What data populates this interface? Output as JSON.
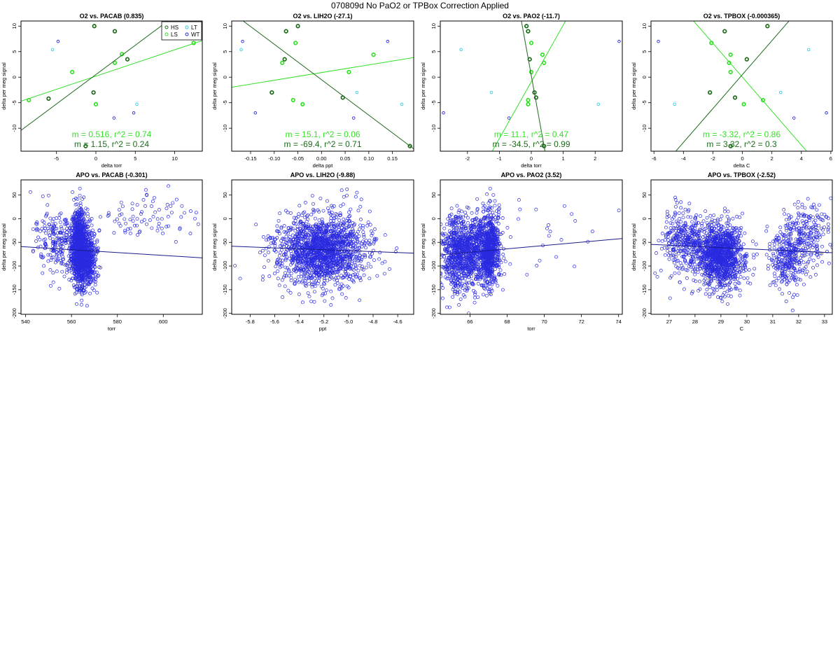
{
  "page": {
    "title": "070809d   No PaO2 or TPBox Correction Applied"
  },
  "legend": {
    "entries": [
      {
        "label": "HS",
        "color": "#1e6b1e"
      },
      {
        "label": "LT",
        "color": "#33d0e0"
      },
      {
        "label": "LS",
        "color": "#36e02a"
      },
      {
        "label": "WT",
        "color": "#2a2ae0"
      }
    ]
  },
  "chart_data": [
    {
      "type": "scatter",
      "title": "O2 vs. PACAB (0.835)",
      "xlabel": "delta torr",
      "ylabel": "delta per meg signal",
      "xlim": [
        -9.5,
        13.5
      ],
      "ylim": [
        -14.5,
        11
      ],
      "xticks": [
        -5,
        0,
        5,
        10
      ],
      "yticks": [
        -10,
        -5,
        0,
        5,
        10
      ],
      "series": [
        {
          "name": "HS",
          "points": [
            [
              -0.2,
              10
            ],
            [
              2.4,
              9
            ],
            [
              -6,
              -4.2
            ],
            [
              -1.3,
              -13.5
            ],
            [
              -0.3,
              -3
            ],
            [
              4,
              3.5
            ]
          ]
        },
        {
          "name": "LS",
          "points": [
            [
              -8.5,
              -4.5
            ],
            [
              -3,
              1
            ],
            [
              3.3,
              4.5
            ],
            [
              2.4,
              2.8
            ],
            [
              0,
              -5.3
            ],
            [
              12.4,
              6.7
            ]
          ]
        },
        {
          "name": "LT",
          "points": [
            [
              -5.5,
              5.4
            ],
            [
              5.2,
              -5.3
            ]
          ]
        },
        {
          "name": "WT",
          "points": [
            [
              -4.8,
              7
            ],
            [
              4.8,
              -7
            ],
            [
              2.3,
              -8
            ]
          ]
        }
      ],
      "fits": [
        {
          "m": 0.516,
          "b": 0.2,
          "color": "#36e02a",
          "label": "m = 0.516, r^2 = 0.74"
        },
        {
          "m": 1.15,
          "b": 0.5,
          "color": "#1e6b1e",
          "label": "m = 1.15, r^2 = 0.24"
        }
      ],
      "legend": true
    },
    {
      "type": "scatter",
      "title": "O2 vs. LIH2O (-27.1)",
      "xlabel": "delta ppt",
      "ylabel": "delta per meg signal",
      "xlim": [
        -0.19,
        0.195
      ],
      "ylim": [
        -14.5,
        11
      ],
      "xticks": [
        -0.15,
        -0.1,
        -0.05,
        0.0,
        0.05,
        0.1,
        0.15
      ],
      "yticks": [
        -10,
        -5,
        0,
        5,
        10
      ],
      "xtickfmt": 2,
      "series": [
        {
          "name": "HS",
          "points": [
            [
              -0.05,
              10
            ],
            [
              -0.075,
              9
            ],
            [
              -0.078,
              3.5
            ],
            [
              -0.105,
              -3
            ],
            [
              0.045,
              -4
            ],
            [
              0.187,
              -13.5
            ]
          ]
        },
        {
          "name": "LS",
          "points": [
            [
              -0.055,
              6.7
            ],
            [
              -0.083,
              2.8
            ],
            [
              -0.06,
              -4.5
            ],
            [
              -0.04,
              -5.3
            ],
            [
              0.058,
              1
            ],
            [
              0.11,
              4.4
            ]
          ]
        },
        {
          "name": "LT",
          "points": [
            [
              -0.17,
              5.4
            ],
            [
              0.17,
              -5.3
            ],
            [
              0.075,
              -3
            ]
          ]
        },
        {
          "name": "WT",
          "points": [
            [
              -0.167,
              7
            ],
            [
              0.14,
              7
            ],
            [
              -0.14,
              -7
            ],
            [
              0.068,
              -8
            ]
          ]
        }
      ],
      "fits": [
        {
          "m": 15.1,
          "b": 0.9,
          "color": "#36e02a",
          "label": "m = 15.1, r^2 = 0.06"
        },
        {
          "m": -69.4,
          "b": -0.5,
          "color": "#1e6b1e",
          "label": "m = -69.4, r^2 = 0.71"
        }
      ]
    },
    {
      "type": "scatter",
      "title": "O2 vs. PAO2 (-11.7)",
      "xlabel": "delta torr",
      "ylabel": "delta per meg signal",
      "xlim": [
        -2.85,
        2.85
      ],
      "ylim": [
        -14.5,
        11
      ],
      "xticks": [
        -2,
        -1,
        0,
        1,
        2
      ],
      "yticks": [
        -10,
        -5,
        0,
        5,
        10
      ],
      "series": [
        {
          "name": "HS",
          "points": [
            [
              -0.15,
              10
            ],
            [
              -0.1,
              9
            ],
            [
              -0.05,
              3.5
            ],
            [
              0.1,
              -3
            ],
            [
              0.15,
              -4
            ],
            [
              0.4,
              -13.5
            ]
          ]
        },
        {
          "name": "LS",
          "points": [
            [
              0.0,
              6.7
            ],
            [
              0.35,
              4.4
            ],
            [
              0.4,
              2.8
            ],
            [
              0.0,
              1
            ],
            [
              -0.1,
              -4.5
            ],
            [
              -0.1,
              -5.3
            ]
          ]
        },
        {
          "name": "LT",
          "points": [
            [
              -2.2,
              5.4
            ],
            [
              2.1,
              -5.3
            ],
            [
              -1.25,
              -3
            ]
          ]
        },
        {
          "name": "WT",
          "points": [
            [
              2.75,
              7
            ],
            [
              -2.75,
              -7
            ],
            [
              -0.7,
              -8
            ]
          ]
        }
      ],
      "fits": [
        {
          "m": 11.1,
          "b": -0.9,
          "color": "#36e02a",
          "label": "m = 11.1, r^2 = 0.47"
        },
        {
          "m": -34.5,
          "b": 0.3,
          "color": "#1e6b1e",
          "label": "m = -34.5, r^2 = 0.99"
        }
      ]
    },
    {
      "type": "scatter",
      "title": "O2 vs. TPBOX (-0.000365)",
      "xlabel": "delta C",
      "ylabel": "delta per meg signal",
      "xlim": [
        -6.2,
        6.1
      ],
      "ylim": [
        -14.5,
        11
      ],
      "xticks": [
        -6,
        -4,
        -2,
        0,
        2,
        4,
        6
      ],
      "yticks": [
        -10,
        -5,
        0,
        5,
        10
      ],
      "series": [
        {
          "name": "HS",
          "points": [
            [
              -1.2,
              9
            ],
            [
              1.7,
              10
            ],
            [
              -2.2,
              -3
            ],
            [
              0.3,
              3.5
            ],
            [
              -0.5,
              -4
            ],
            [
              -0.8,
              -13.5
            ]
          ]
        },
        {
          "name": "LS",
          "points": [
            [
              -2.1,
              6.7
            ],
            [
              -0.8,
              4.4
            ],
            [
              -0.9,
              2.8
            ],
            [
              -0.8,
              1
            ],
            [
              1.4,
              -4.5
            ],
            [
              0.1,
              -5.3
            ]
          ]
        },
        {
          "name": "LT",
          "points": [
            [
              4.5,
              5.4
            ],
            [
              -4.6,
              -5.3
            ],
            [
              2.6,
              -3
            ]
          ]
        },
        {
          "name": "WT",
          "points": [
            [
              -5.7,
              7
            ],
            [
              5.7,
              -7
            ],
            [
              3.5,
              -8
            ]
          ]
        }
      ],
      "fits": [
        {
          "m": -3.32,
          "b": 0.0,
          "color": "#36e02a",
          "label": "m = -3.32, r^2 = 0.86"
        },
        {
          "m": 3.32,
          "b": 0.5,
          "color": "#1e6b1e",
          "label": "m = 3.32, r^2 = 0.3"
        }
      ]
    },
    {
      "type": "scatter",
      "title": "APO vs. PACAB (-0.301)",
      "xlabel": "torr",
      "ylabel": "delta per meg signal",
      "xlim": [
        538,
        617
      ],
      "ylim": [
        -202,
        82
      ],
      "xticks": [
        540,
        560,
        580,
        600
      ],
      "yticks": [
        -200,
        -150,
        -100,
        -50,
        0,
        50
      ],
      "color": "#2a2ae0",
      "generator": {
        "seed": 11,
        "clusters": [
          {
            "n": 1000,
            "cx": 563.3,
            "sx": 1.6,
            "cy": -60,
            "sy": 40
          },
          {
            "n": 400,
            "cx": 567.5,
            "sx": 1.7,
            "cy": -88,
            "sy": 30
          },
          {
            "n": 200,
            "cx": 556,
            "sx": 4.5,
            "cy": -52,
            "sy": 32
          },
          {
            "n": 90,
            "cx": 593,
            "sx": 13,
            "cy": 0,
            "sy": 25
          },
          {
            "n": 40,
            "cx": 548,
            "sx": 4,
            "cy": -40,
            "sy": 45
          }
        ]
      },
      "fits": [
        {
          "m": -0.301,
          "b": 103,
          "color": "#1a1a8c"
        }
      ]
    },
    {
      "type": "scatter",
      "title": "APO vs. LIH2O (-9.88)",
      "xlabel": "ppt",
      "ylabel": "delta per meg signal",
      "xlim": [
        -5.95,
        -4.47
      ],
      "ylim": [
        -202,
        82
      ],
      "xticks": [
        -5.8,
        -5.6,
        -5.4,
        -5.2,
        -5.0,
        -4.8,
        -4.6
      ],
      "yticks": [
        -200,
        -150,
        -100,
        -50,
        0,
        50
      ],
      "xtickfmt": 1,
      "color": "#2a2ae0",
      "generator": {
        "seed": 23,
        "clusters": [
          {
            "n": 1500,
            "cx": -5.22,
            "sx": 0.17,
            "cy": -68,
            "sy": 36
          },
          {
            "n": 150,
            "cx": -5.2,
            "sx": 0.3,
            "cy": -60,
            "sy": 45
          }
        ]
      },
      "fits": [
        {
          "m": -9.88,
          "b": -117,
          "color": "#1a1a8c"
        }
      ]
    },
    {
      "type": "scatter",
      "title": "APO vs. PAO2 (3.52)",
      "xlabel": "torr",
      "ylabel": "delta per meg signal",
      "xlim": [
        64.4,
        74.2
      ],
      "ylim": [
        -202,
        82
      ],
      "xticks": [
        66,
        68,
        70,
        72,
        74
      ],
      "yticks": [
        -200,
        -150,
        -100,
        -50,
        0,
        50
      ],
      "color": "#2a2ae0",
      "generator": {
        "seed": 37,
        "clusters": [
          {
            "n": 700,
            "cx": 65.4,
            "sx": 0.45,
            "cy": -70,
            "sy": 40
          },
          {
            "n": 800,
            "cx": 67.0,
            "sx": 0.3,
            "cy": -64,
            "sy": 38
          },
          {
            "n": 250,
            "cx": 66.2,
            "sx": 0.3,
            "cy": -68,
            "sy": 38
          },
          {
            "n": 30,
            "cx": 70,
            "sx": 1.8,
            "cy": -45,
            "sy": 40
          }
        ]
      },
      "fits": [
        {
          "m": 3.52,
          "b": -303,
          "color": "#1a1a8c"
        }
      ]
    },
    {
      "type": "scatter",
      "title": "APO vs. TPBOX (-2.52)",
      "xlabel": "C",
      "ylabel": "delta per meg signal",
      "xlim": [
        26.3,
        33.3
      ],
      "ylim": [
        -202,
        82
      ],
      "xticks": [
        27,
        28,
        29,
        30,
        31,
        32,
        33
      ],
      "yticks": [
        -200,
        -150,
        -100,
        -50,
        0,
        50
      ],
      "color": "#2a2ae0",
      "generator": {
        "seed": 53,
        "clusters": [
          {
            "n": 1200,
            "cx": 29.0,
            "sx": 0.45,
            "cy": -78,
            "sy": 34
          },
          {
            "n": 350,
            "cx": 27.6,
            "sx": 0.4,
            "cy": -50,
            "sy": 34
          },
          {
            "n": 300,
            "cx": 31.6,
            "sx": 0.35,
            "cy": -80,
            "sy": 35
          },
          {
            "n": 200,
            "cx": 32.4,
            "sx": 0.45,
            "cy": -30,
            "sy": 35
          }
        ]
      },
      "fits": [
        {
          "m": -2.52,
          "b": 12,
          "color": "#1a1a8c"
        }
      ]
    }
  ]
}
